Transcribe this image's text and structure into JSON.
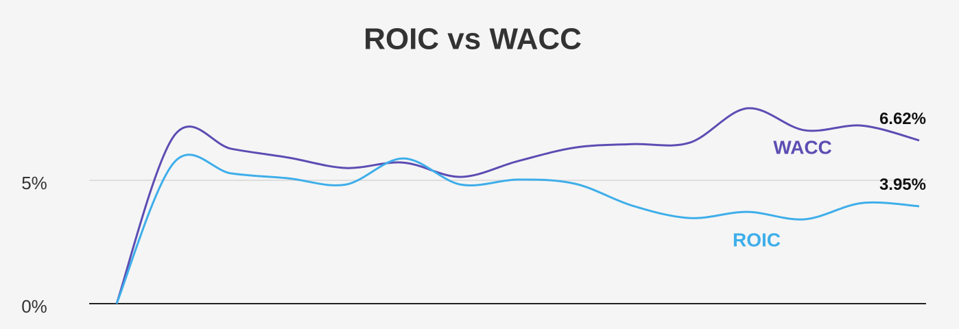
{
  "chart_data": {
    "type": "line",
    "title": "ROIC vs WACC",
    "categories": [
      null,
      null,
      null,
      null,
      null,
      null,
      null,
      null,
      null,
      null,
      null,
      null,
      null,
      null,
      null
    ],
    "series": [
      {
        "name": "WACC",
        "color": "#5b4db3",
        "values": [
          0,
          6.8,
          6.28,
          5.92,
          5.5,
          5.72,
          5.14,
          5.78,
          6.33,
          6.47,
          6.53,
          7.92,
          7.03,
          7.22,
          6.62
        ],
        "value_labels": [
          null,
          null,
          null,
          null,
          null,
          null,
          null,
          null,
          null,
          null,
          null,
          null,
          null,
          null,
          "6.62%"
        ]
      },
      {
        "name": "ROIC",
        "color": "#3eaeea",
        "values": [
          0,
          5.72,
          5.28,
          5.08,
          4.83,
          5.89,
          4.83,
          5.03,
          4.86,
          3.97,
          3.47,
          3.72,
          3.42,
          4.08,
          3.95
        ],
        "value_labels": [
          null,
          null,
          null,
          null,
          null,
          null,
          null,
          null,
          null,
          null,
          null,
          null,
          null,
          null,
          "3.95%"
        ]
      }
    ],
    "ylim": [
      0,
      9.7
    ],
    "yticks": [
      {
        "value": 0,
        "label": "0%"
      },
      {
        "value": 5,
        "label": "5%"
      }
    ],
    "grid": true
  }
}
